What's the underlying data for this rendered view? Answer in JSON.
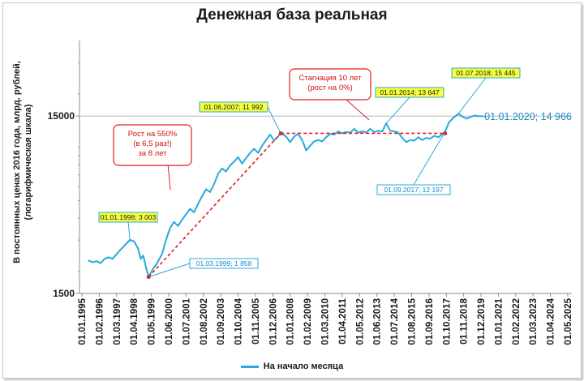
{
  "chart_data": {
    "type": "line",
    "title": "Денежная база реальная",
    "ylabel_lines": [
      "В постоянных ценах 2016 года, млрд. рублей,",
      "(логарифмическая шкала)"
    ],
    "yscale": "log",
    "ylim": [
      1500,
      40000
    ],
    "yticks": [
      1500,
      15000
    ],
    "ytick_labels": [
      "1500",
      "15000"
    ],
    "xticks": [
      "01.01.1995",
      "01.02.1996",
      "01.03.1997",
      "01.04.1998",
      "01.05.1999",
      "01.06.2000",
      "01.07.2001",
      "01.08.2002",
      "01.09.2003",
      "01.10.2004",
      "01.11.2005",
      "01.12.2006",
      "01.01.2008",
      "01.02.2009",
      "01.03.2010",
      "01.04.2011",
      "01.05.2012",
      "01.06.2013",
      "01.07.2014",
      "01.08.2015",
      "01.09.2016",
      "01.10.2017",
      "01.11.2018",
      "01.12.2019",
      "01.01.2021",
      "01.02.2022",
      "01.03.2023",
      "01.04.2024",
      "01.05.2025"
    ],
    "grid": "horizontal-at-15000",
    "legend_position": "bottom",
    "series": [
      {
        "name": "На начало месяца",
        "color": "#29a8dc",
        "points": [
          [
            "1995-06",
            2300
          ],
          [
            "1995-09",
            2250
          ],
          [
            "1995-12",
            2280
          ],
          [
            "1996-03",
            2220
          ],
          [
            "1996-06",
            2350
          ],
          [
            "1996-09",
            2400
          ],
          [
            "1996-12",
            2350
          ],
          [
            "1997-03",
            2500
          ],
          [
            "1997-06",
            2650
          ],
          [
            "1997-09",
            2800
          ],
          [
            "1998-01",
            3003
          ],
          [
            "1998-04",
            2950
          ],
          [
            "1998-07",
            2700
          ],
          [
            "1998-09",
            2350
          ],
          [
            "1998-11",
            2450
          ],
          [
            "1999-01",
            2100
          ],
          [
            "1999-03",
            1858
          ],
          [
            "1999-06",
            2050
          ],
          [
            "1999-09",
            2200
          ],
          [
            "2000-01",
            2500
          ],
          [
            "2000-04",
            3000
          ],
          [
            "2000-07",
            3500
          ],
          [
            "2000-10",
            3800
          ],
          [
            "2001-01",
            3600
          ],
          [
            "2001-04",
            3900
          ],
          [
            "2001-07",
            4200
          ],
          [
            "2001-10",
            4500
          ],
          [
            "2002-01",
            4300
          ],
          [
            "2002-04",
            4800
          ],
          [
            "2002-07",
            5300
          ],
          [
            "2002-10",
            5800
          ],
          [
            "2003-01",
            5600
          ],
          [
            "2003-04",
            6200
          ],
          [
            "2003-07",
            7100
          ],
          [
            "2003-10",
            7600
          ],
          [
            "2004-01",
            7300
          ],
          [
            "2004-04",
            7900
          ],
          [
            "2004-07",
            8300
          ],
          [
            "2004-10",
            8800
          ],
          [
            "2005-01",
            8100
          ],
          [
            "2005-04",
            8700
          ],
          [
            "2005-07",
            9300
          ],
          [
            "2005-10",
            9800
          ],
          [
            "2006-01",
            9300
          ],
          [
            "2006-04",
            10200
          ],
          [
            "2006-07",
            11000
          ],
          [
            "2006-10",
            11800
          ],
          [
            "2007-01",
            10900
          ],
          [
            "2007-06",
            11992
          ],
          [
            "2007-10",
            11500
          ],
          [
            "2008-01",
            10700
          ],
          [
            "2008-04",
            11500
          ],
          [
            "2008-07",
            11900
          ],
          [
            "2008-10",
            11000
          ],
          [
            "2009-01",
            9600
          ],
          [
            "2009-04",
            10200
          ],
          [
            "2009-07",
            10800
          ],
          [
            "2009-10",
            11000
          ],
          [
            "2010-01",
            10800
          ],
          [
            "2010-04",
            11400
          ],
          [
            "2010-07",
            11900
          ],
          [
            "2010-10",
            11800
          ],
          [
            "2011-01",
            12300
          ],
          [
            "2011-04",
            12000
          ],
          [
            "2011-07",
            12200
          ],
          [
            "2011-10",
            12100
          ],
          [
            "2012-01",
            12700
          ],
          [
            "2012-04",
            12100
          ],
          [
            "2012-07",
            12300
          ],
          [
            "2012-10",
            12100
          ],
          [
            "2013-01",
            12700
          ],
          [
            "2013-04",
            12200
          ],
          [
            "2013-07",
            12400
          ],
          [
            "2013-10",
            12300
          ],
          [
            "2014-01",
            13647
          ],
          [
            "2014-04",
            12400
          ],
          [
            "2014-07",
            12300
          ],
          [
            "2014-10",
            12100
          ],
          [
            "2015-01",
            11300
          ],
          [
            "2015-04",
            10700
          ],
          [
            "2015-07",
            11000
          ],
          [
            "2015-10",
            10900
          ],
          [
            "2016-01",
            11400
          ],
          [
            "2016-04",
            11000
          ],
          [
            "2016-07",
            11300
          ],
          [
            "2016-10",
            11200
          ],
          [
            "2017-01",
            11600
          ],
          [
            "2017-04",
            11400
          ],
          [
            "2017-09",
            12197
          ],
          [
            "2017-12",
            13800
          ],
          [
            "2018-03",
            14600
          ],
          [
            "2018-07",
            15445
          ],
          [
            "2018-10",
            14900
          ],
          [
            "2019-01",
            14500
          ],
          [
            "2019-04",
            14800
          ],
          [
            "2019-07",
            15100
          ],
          [
            "2019-10",
            15000
          ],
          [
            "2020-01",
            14966
          ]
        ]
      }
    ],
    "annotations": [
      {
        "id": "a1998",
        "text": "01.01.1998;  3 003",
        "style": "yellow"
      },
      {
        "id": "a1999",
        "text": "01.03.1999;  1 858",
        "style": "cyan"
      },
      {
        "id": "a2007",
        "text": "01.06.2007;  11 992",
        "style": "yellow"
      },
      {
        "id": "a2014",
        "text": "01.01.2014;  13 647",
        "style": "yellow"
      },
      {
        "id": "a2017",
        "text": "01.09.2017;  12 197",
        "style": "cyan"
      },
      {
        "id": "a2018",
        "text": "01.07.2018;  15 445",
        "style": "yellow"
      },
      {
        "id": "a2020",
        "text": "01.01.2020;  14 966",
        "style": "cyan-big"
      }
    ],
    "callouts": [
      {
        "id": "growth",
        "lines": [
          "Рост на 550%",
          "(в 6,5 раз!)",
          "за 8 лет"
        ]
      },
      {
        "id": "stagnation",
        "lines": [
          "Стагнация 10 лет",
          "(рост на 0%)"
        ]
      }
    ]
  }
}
